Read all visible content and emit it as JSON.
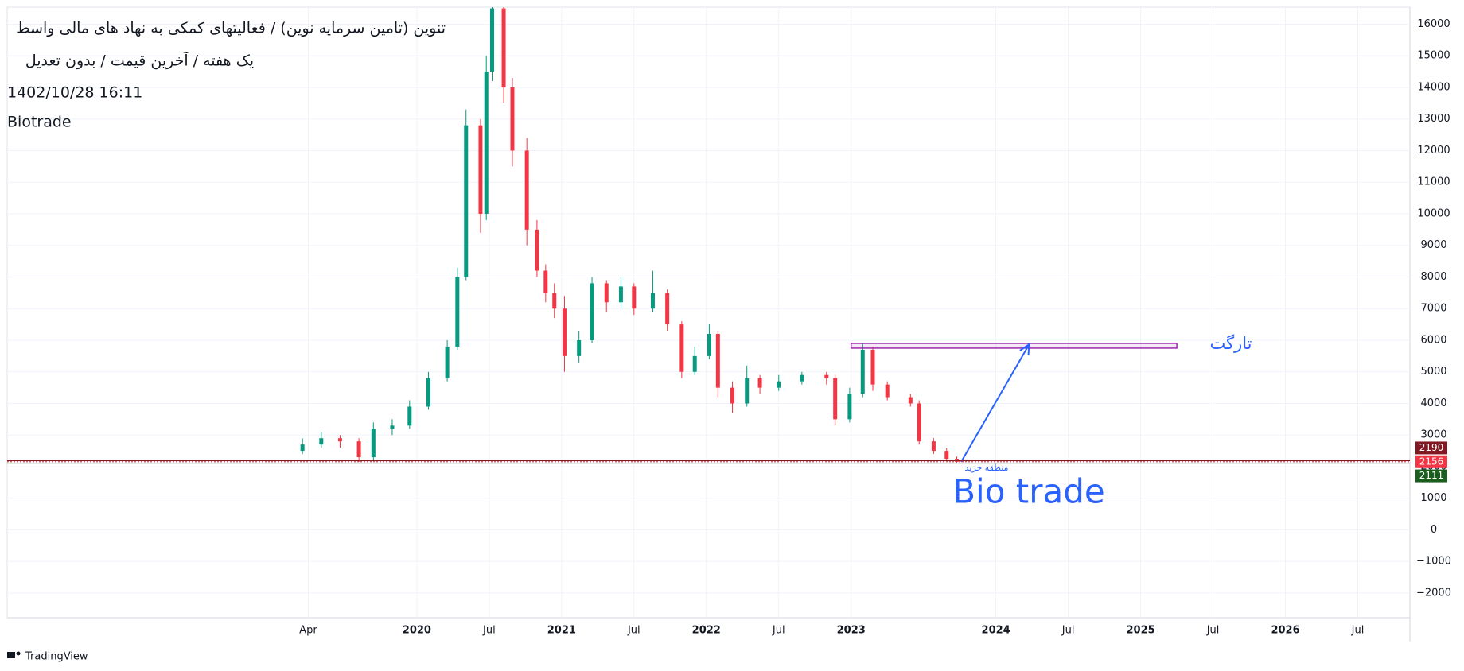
{
  "chart_data": {
    "type": "candlestick",
    "title": "تنوین (تامین سرمایه نوین) / فعالیتهای کمکی به نهاد های مالی واسط",
    "subtitle": "یک هفته / آخرین قیمت / بدون تعدیل",
    "datetime": "1402/10/28 16:11",
    "author": "Biotrade",
    "up_color": "#089981",
    "down_color": "#f23645",
    "x": [
      2019.21,
      2019.34,
      2019.47,
      2019.6,
      2019.7,
      2019.83,
      2019.95,
      2020.08,
      2020.21,
      2020.28,
      2020.34,
      2020.44,
      2020.48,
      2020.52,
      2020.6,
      2020.66,
      2020.76,
      2020.83,
      2020.89,
      2020.95,
      2021.02,
      2021.12,
      2021.21,
      2021.31,
      2021.41,
      2021.5,
      2021.63,
      2021.73,
      2021.83,
      2021.92,
      2022.02,
      2022.08,
      2022.18,
      2022.28,
      2022.37,
      2022.5,
      2022.66,
      2022.83,
      2022.89,
      2022.99,
      2023.08,
      2023.15,
      2023.25,
      2023.41,
      2023.47,
      2023.57,
      2023.66,
      2023.73
    ],
    "open": [
      2500,
      2700,
      2900,
      2800,
      2300,
      3200,
      3300,
      3900,
      4800,
      5800,
      8000,
      12800,
      10000,
      14500,
      16500,
      14000,
      12000,
      9500,
      8200,
      7500,
      7000,
      5500,
      6000,
      7800,
      7200,
      7700,
      7000,
      7500,
      6500,
      5000,
      5500,
      6200,
      4500,
      4000,
      4800,
      4500,
      4700,
      4900,
      4800,
      3500,
      4300,
      5700,
      4600,
      4200,
      4000,
      2800,
      2500,
      2250
    ],
    "high": [
      2900,
      3100,
      3000,
      2900,
      3400,
      3500,
      4100,
      5000,
      6000,
      8300,
      13300,
      13000,
      15000,
      17000,
      16800,
      14300,
      12400,
      9800,
      8400,
      7800,
      7400,
      6300,
      8000,
      7900,
      8000,
      7800,
      8200,
      7600,
      6600,
      5800,
      6500,
      6300,
      4700,
      5200,
      4900,
      4900,
      5000,
      5000,
      4900,
      4500,
      5900,
      5800,
      4700,
      4300,
      4100,
      2900,
      2600,
      2320
    ],
    "low": [
      2400,
      2600,
      2600,
      2150,
      2200,
      3000,
      3200,
      3800,
      4700,
      5700,
      7900,
      9400,
      9800,
      14200,
      13500,
      11500,
      9000,
      8000,
      7200,
      6700,
      5000,
      5300,
      5900,
      6900,
      7000,
      6800,
      6900,
      6300,
      4800,
      4900,
      5400,
      4200,
      3700,
      3900,
      4300,
      4400,
      4600,
      4600,
      3300,
      3400,
      4200,
      4400,
      4100,
      3900,
      2700,
      2400,
      2200,
      2111
    ],
    "close": [
      2700,
      2900,
      2800,
      2300,
      3200,
      3300,
      3900,
      4800,
      5800,
      8000,
      12800,
      10000,
      14500,
      16500,
      14000,
      12000,
      9500,
      8200,
      7500,
      7000,
      5500,
      6000,
      7800,
      7200,
      7700,
      7000,
      7500,
      6500,
      5000,
      5500,
      6200,
      4500,
      4000,
      4800,
      4500,
      4700,
      4900,
      4800,
      3500,
      4300,
      5700,
      4600,
      4200,
      4000,
      2800,
      2500,
      2250,
      2156
    ],
    "xlim": [
      2017.17,
      2026.86
    ],
    "xticks": [
      {
        "value": 2019.25,
        "label": "Apr"
      },
      2020,
      {
        "value": 2020.5,
        "label": "Jul"
      },
      2021,
      {
        "value": 2021.5,
        "label": "Jul"
      },
      2022,
      {
        "value": 2022.5,
        "label": "Jul"
      },
      2023,
      2024,
      {
        "value": 2024.5,
        "label": "Jul"
      },
      2025,
      {
        "value": 2025.5,
        "label": "Jul"
      },
      2026,
      {
        "value": 2026.5,
        "label": "Jul"
      }
    ],
    "ylim": [
      -2780,
      16540
    ],
    "yticks": [
      {
        "value": -2000,
        "label": "−2000"
      },
      {
        "value": -1000,
        "label": "−1000"
      },
      0,
      1000,
      2000,
      3000,
      4000,
      5000,
      6000,
      7000,
      8000,
      9000,
      10000,
      11000,
      12000,
      13000,
      14000,
      15000,
      16000
    ],
    "grid": true,
    "price_lines": [
      {
        "value": 2190,
        "color": "#801922"
      },
      {
        "value": 2156,
        "color": "#f23645"
      },
      {
        "value": 2111,
        "color": "#1b5e20"
      }
    ],
    "target_zone": {
      "low": 5750,
      "high": 5900,
      "x": [
        2023.0,
        2025.25
      ],
      "color": "#9c27b0",
      "label": "تارگت"
    },
    "arrow": {
      "x": [
        2023.76,
        2024.23
      ],
      "y": [
        2150,
        5870
      ],
      "color": "#2962ff"
    },
    "buy_zone_label": "منطقه خرید",
    "watermark_text": "Bio trade",
    "brand": "TradingView"
  }
}
